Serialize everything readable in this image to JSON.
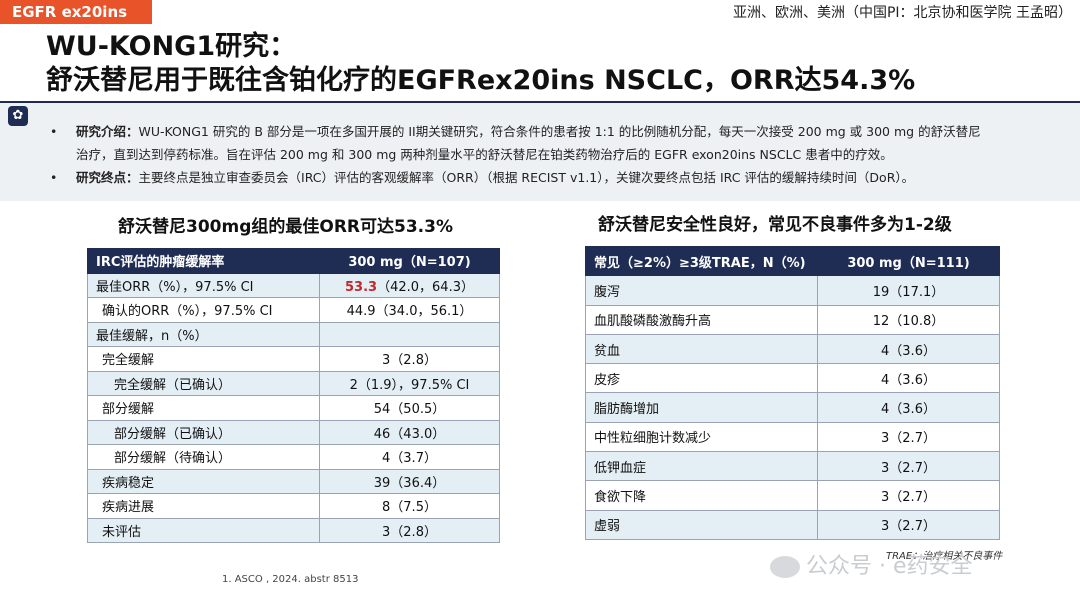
{
  "header": {
    "tag": "EGFR ex20ins",
    "region": "亚洲、欧洲、美洲（中国PI：北京协和医学院 王孟昭）",
    "title_line1": "WU-KONG1研究：",
    "title_line2": "舒沃替尼用于既往含铂化疗的EGFRex20ins NSCLC，ORR达54.3%"
  },
  "intro": {
    "bullet": "•",
    "study_label": "研究介绍：",
    "study_text_1": "WU-KONG1 研究的 B 部分是一项在多国开展的 II期关键研究，符合条件的患者按 1:1 的比例随机分配，每天一次接受 200 mg 或 300 mg 的舒沃替尼",
    "study_text_2": "治疗，直到达到停药标准。旨在评估 200 mg 和 300 mg 两种剂量水平的舒沃替尼在铂类药物治疗后的 EGFR exon20ins NSCLC 患者中的疗效。",
    "endpoint_label": "研究终点：",
    "endpoint_text": "主要终点是独立审查委员会（IRC）评估的客观缓解率（ORR）（根据 RECIST v1.1），关键次要终点包括 IRC 评估的缓解持续时间（DoR）。"
  },
  "left": {
    "subtitle": "舒沃替尼300mg组的最佳ORR可达53.3%",
    "headers": [
      "IRC评估的肿瘤缓解率",
      "300 mg（N=107)"
    ],
    "rows": [
      {
        "label": "最佳ORR（%），97.5% CI",
        "value_hl": "53.3",
        "value": "（42.0，64.3）"
      },
      {
        "label": "确认的ORR（%），97.5% CI",
        "value_hl": "",
        "value": "44.9（34.0，56.1）"
      },
      {
        "label": "最佳缓解，n（%）",
        "value_hl": "",
        "value": ""
      },
      {
        "label": "完全缓解",
        "value_hl": "",
        "value": "3（2.8）"
      },
      {
        "label": "完全缓解（已确认）",
        "value_hl": "",
        "value": "2（1.9），97.5% CI"
      },
      {
        "label": "部分缓解",
        "value_hl": "",
        "value": "54（50.5）"
      },
      {
        "label": "部分缓解（已确认）",
        "value_hl": "",
        "value": "46（43.0）"
      },
      {
        "label": "部分缓解（待确认）",
        "value_hl": "",
        "value": "4（3.7）"
      },
      {
        "label": "疾病稳定",
        "value_hl": "",
        "value": "39（36.4）"
      },
      {
        "label": "疾病进展",
        "value_hl": "",
        "value": "8（7.5）"
      },
      {
        "label": "未评估",
        "value_hl": "",
        "value": "3（2.8）"
      }
    ]
  },
  "right": {
    "subtitle": "舒沃替尼安全性良好，常见不良事件多为1-2级",
    "headers": [
      "常见（≥2%）≥3级TRAE，N（%)",
      "300 mg（N=111)"
    ],
    "rows": [
      {
        "label": "腹泻",
        "value": "19（17.1）"
      },
      {
        "label": "血肌酸磷酸激酶升高",
        "value": "12（10.8）"
      },
      {
        "label": "贫血",
        "value": "4（3.6）"
      },
      {
        "label": "皮疹",
        "value": "4（3.6）"
      },
      {
        "label": "脂肪酶增加",
        "value": "4（3.6）"
      },
      {
        "label": "中性粒细胞计数减少",
        "value": "3（2.7）"
      },
      {
        "label": "低钾血症",
        "value": "3（2.7）"
      },
      {
        "label": "食欲下降",
        "value": "3（2.7）"
      },
      {
        "label": "虚弱",
        "value": "3（2.7）"
      }
    ],
    "note": "TRAE：治疗相关不良事件"
  },
  "footnote": "1.    ASCO , 2024. abstr 8513",
  "watermark": "公众号 · e药安全"
}
